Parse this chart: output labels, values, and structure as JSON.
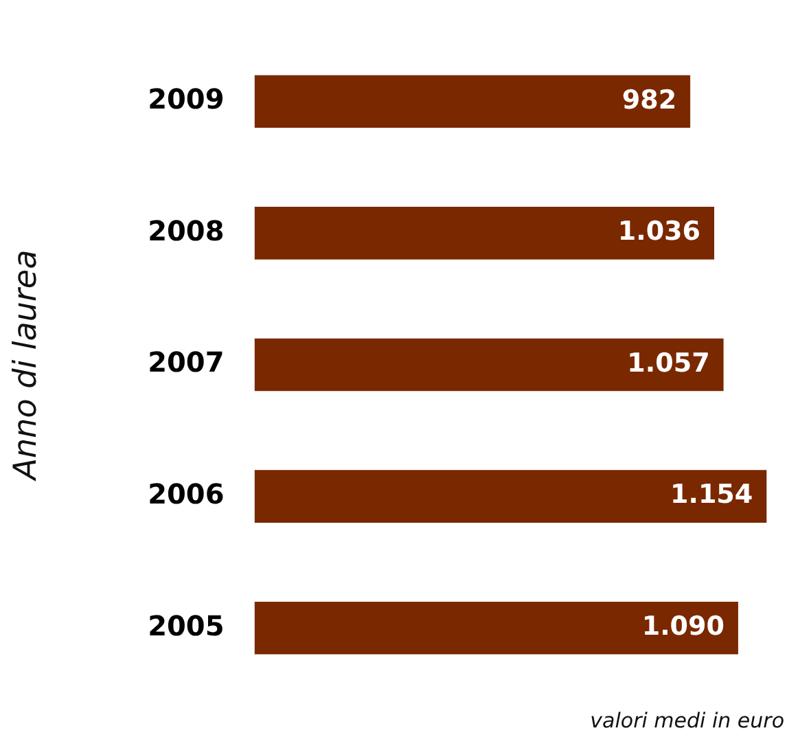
{
  "chart_data": {
    "type": "bar",
    "orientation": "horizontal",
    "ylabel": "Anno di laurea",
    "categories": [
      "2009",
      "2008",
      "2007",
      "2006",
      "2005"
    ],
    "values": [
      982,
      1036,
      1057,
      1154,
      1090
    ],
    "value_labels": [
      "982",
      "1.036",
      "1.057",
      "1.154",
      "1.090"
    ],
    "color": "#7a2800",
    "tick_labels": "y",
    "annotations": [
      "valori medi in euro"
    ]
  }
}
